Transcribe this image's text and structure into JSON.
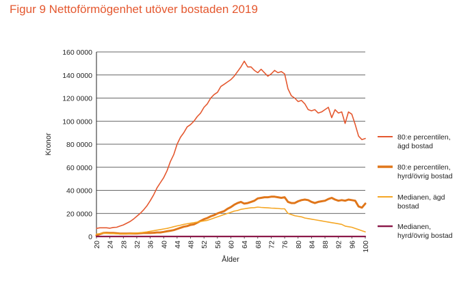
{
  "figure": {
    "title": "Figur 9 Nettoförmögenhet utöver bostaden 2019"
  },
  "chart_data": {
    "type": "line",
    "title": "Figur 9 Nettoförmögenhet utöver bostaden 2019",
    "xlabel": "Ålder",
    "ylabel": "Kronor",
    "xlim": [
      20,
      100
    ],
    "ylim": [
      0,
      160000
    ],
    "grid": "horizontal",
    "legend_position": "right",
    "x_ticks": [
      "20",
      "24",
      "28",
      "32",
      "36",
      "40",
      "44",
      "48",
      "52",
      "56",
      "60",
      "64",
      "68",
      "72",
      "76",
      "80",
      "84",
      "88",
      "92",
      "96",
      "100"
    ],
    "y_ticks": [
      "0",
      "20 0000",
      "40 0000",
      "60 0000",
      "80 0000",
      "100 0000",
      "120 0000",
      "140 0000",
      "160 0000"
    ],
    "x": [
      20,
      21,
      22,
      23,
      24,
      25,
      26,
      27,
      28,
      29,
      30,
      31,
      32,
      33,
      34,
      35,
      36,
      37,
      38,
      39,
      40,
      41,
      42,
      43,
      44,
      45,
      46,
      47,
      48,
      49,
      50,
      51,
      52,
      53,
      54,
      55,
      56,
      57,
      58,
      59,
      60,
      61,
      62,
      63,
      64,
      65,
      66,
      67,
      68,
      69,
      70,
      71,
      72,
      73,
      74,
      75,
      76,
      77,
      78,
      79,
      80,
      81,
      82,
      83,
      84,
      85,
      86,
      87,
      88,
      89,
      90,
      91,
      92,
      93,
      94,
      95,
      96,
      97,
      98,
      99,
      100
    ],
    "series": [
      {
        "name": "80:e percentilen, ägd bostad",
        "color": "#e4572e",
        "width": 1.6,
        "values": [
          7000,
          7500,
          7500,
          7500,
          7200,
          7800,
          8000,
          9000,
          10000,
          11500,
          13000,
          15000,
          17500,
          20000,
          23000,
          26500,
          31000,
          36000,
          42000,
          46500,
          51000,
          57000,
          65000,
          71000,
          80000,
          86000,
          90000,
          95000,
          97000,
          100000,
          104000,
          107000,
          112000,
          115000,
          120000,
          123000,
          125000,
          130000,
          132000,
          134000,
          136000,
          139000,
          143000,
          147000,
          152000,
          147000,
          147000,
          144000,
          142000,
          145000,
          142000,
          139000,
          141000,
          144000,
          142000,
          143000,
          141000,
          128000,
          122000,
          120000,
          117000,
          118000,
          115000,
          110000,
          109000,
          110000,
          107000,
          108000,
          110000,
          112000,
          103000,
          110000,
          107000,
          108000,
          98000,
          108000,
          106000,
          97000,
          87000,
          84000,
          85000
        ]
      },
      {
        "name": "80:e percentilen, hyrd/övrig bostad",
        "color": "#e0761a",
        "width": 3.0,
        "values": [
          1000,
          2000,
          3000,
          3200,
          3000,
          3000,
          2800,
          2500,
          2500,
          2500,
          2600,
          2600,
          2600,
          2800,
          3000,
          3000,
          3000,
          3200,
          3500,
          3500,
          4000,
          4500,
          5000,
          5500,
          6500,
          7500,
          8500,
          9000,
          10000,
          10500,
          12000,
          13500,
          15000,
          16000,
          17500,
          18500,
          20000,
          21000,
          22000,
          24000,
          25500,
          27500,
          29000,
          30000,
          28500,
          29000,
          30000,
          31000,
          33000,
          33500,
          34000,
          34000,
          34500,
          34500,
          34000,
          33500,
          34000,
          30000,
          29000,
          29000,
          30500,
          31500,
          32000,
          31500,
          30000,
          29000,
          30000,
          30500,
          31000,
          32500,
          33500,
          32000,
          31000,
          31500,
          31000,
          32000,
          31500,
          31000,
          26000,
          25000,
          28500
        ]
      },
      {
        "name": "Medianen, ägd bostad",
        "color": "#f5a623",
        "width": 1.6,
        "values": [
          2000,
          2500,
          3000,
          2800,
          2500,
          2500,
          2300,
          2200,
          2200,
          2200,
          2500,
          2800,
          3000,
          3200,
          3600,
          4000,
          4500,
          5000,
          5500,
          6000,
          6500,
          7000,
          7700,
          8500,
          9200,
          9800,
          10500,
          11000,
          11500,
          12000,
          12500,
          13000,
          13500,
          14000,
          15000,
          16000,
          17000,
          18000,
          19000,
          20000,
          21000,
          22000,
          22500,
          23500,
          24000,
          24500,
          24800,
          25000,
          25500,
          25200,
          25000,
          24800,
          24600,
          24500,
          24300,
          24000,
          24000,
          20000,
          19000,
          18000,
          17500,
          17000,
          16000,
          15500,
          15000,
          14500,
          14000,
          13500,
          13000,
          12500,
          12000,
          11500,
          11000,
          10500,
          9000,
          8500,
          8000,
          7000,
          6000,
          5000,
          4000
        ]
      },
      {
        "name": "Medianen, hyrd/övrig bostad",
        "color": "#8b1a4a",
        "width": 2.2,
        "values": [
          0,
          0,
          0,
          0,
          0,
          0,
          0,
          0,
          0,
          0,
          0,
          0,
          0,
          0,
          0,
          0,
          0,
          0,
          0,
          0,
          0,
          0,
          0,
          0,
          0,
          0,
          0,
          0,
          0,
          0,
          0,
          0,
          0,
          0,
          0,
          0,
          0,
          0,
          0,
          0,
          0,
          0,
          0,
          0,
          0,
          0,
          0,
          0,
          0,
          0,
          0,
          0,
          0,
          0,
          0,
          0,
          0,
          0,
          0,
          0,
          0,
          0,
          0,
          0,
          0,
          0,
          0,
          0,
          0,
          0,
          0,
          0,
          0,
          0,
          0,
          0,
          0,
          0,
          0,
          0,
          0
        ]
      }
    ],
    "legend": [
      {
        "line1": "80:e percentilen,",
        "line2": "ägd bostad"
      },
      {
        "line1": "80:e percentilen,",
        "line2": "hyrd/övrig bostad"
      },
      {
        "line1": "Medianen, ägd",
        "line2": "bostad"
      },
      {
        "line1": "Medianen,",
        "line2": "hyrd/övrig bostad"
      }
    ]
  }
}
